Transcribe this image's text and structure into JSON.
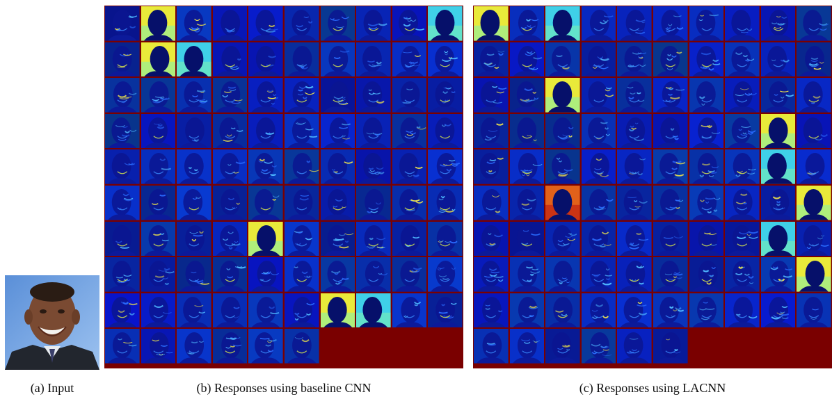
{
  "captions": {
    "input": "(a) Input",
    "baseline": "(b) Responses using baseline CNN",
    "lacnn": "(c) Responses using LACNN"
  },
  "figure": {
    "grid_columns": 10,
    "grid_rows": 10,
    "filled_tiles_per_panel": 96,
    "colors": {
      "padding": "#7a0000",
      "dark_response": "#0a1180",
      "bright_background": "#f4e832"
    }
  }
}
